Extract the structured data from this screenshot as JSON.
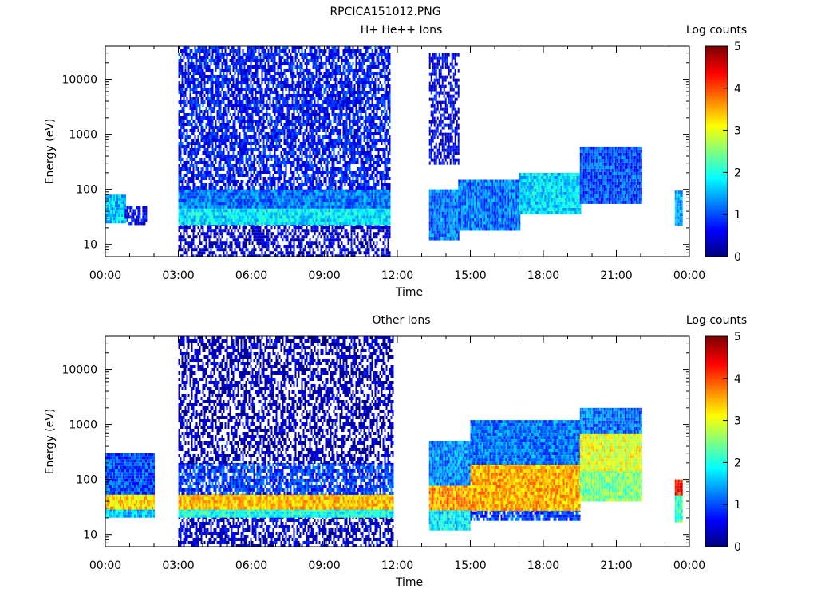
{
  "figure": {
    "title": "RPCICA151012.PNG"
  },
  "chart_data": [
    {
      "type": "heatmap",
      "title": "H+ He++ Ions",
      "xlabel": "Time",
      "ylabel": "Energy (eV)",
      "x_ticks": [
        "00:00",
        "03:00",
        "06:00",
        "09:00",
        "12:00",
        "15:00",
        "18:00",
        "21:00",
        "00:00"
      ],
      "x_range_hours": [
        0,
        24
      ],
      "y_scale": "log",
      "y_range": [
        6,
        40000
      ],
      "y_ticks": [
        "10",
        "100",
        "1000",
        "10000"
      ],
      "colorbar": {
        "label": "Log counts",
        "range": [
          0,
          5
        ],
        "ticks": [
          "0",
          "1",
          "2",
          "3",
          "4",
          "5"
        ]
      },
      "regions": [
        {
          "t_start_h": 0.0,
          "t_end_h": 0.8,
          "e_low": 25,
          "e_high": 80,
          "log_counts": 1.6
        },
        {
          "t_start_h": 0.8,
          "t_end_h": 1.7,
          "e_low": 25,
          "e_high": 50,
          "log_counts": 0.6
        },
        {
          "t_start_h": 3.0,
          "t_end_h": 11.7,
          "e_low": 6,
          "e_high": 25,
          "log_counts": 0.4
        },
        {
          "t_start_h": 3.0,
          "t_end_h": 11.7,
          "e_low": 25,
          "e_high": 50,
          "log_counts": 1.8
        },
        {
          "t_start_h": 3.0,
          "t_end_h": 11.7,
          "e_low": 50,
          "e_high": 100,
          "log_counts": 1.2
        },
        {
          "t_start_h": 3.0,
          "t_end_h": 11.7,
          "e_low": 100,
          "e_high": 40000,
          "log_counts": 0.7
        },
        {
          "t_start_h": 13.3,
          "t_end_h": 14.5,
          "e_low": 12,
          "e_high": 100,
          "log_counts": 1.2
        },
        {
          "t_start_h": 13.3,
          "t_end_h": 14.5,
          "e_low": 300,
          "e_high": 30000,
          "log_counts": 0.5
        },
        {
          "t_start_h": 14.5,
          "t_end_h": 17.0,
          "e_low": 20,
          "e_high": 150,
          "log_counts": 1.2
        },
        {
          "t_start_h": 17.0,
          "t_end_h": 19.5,
          "e_low": 40,
          "e_high": 200,
          "log_counts": 1.7
        },
        {
          "t_start_h": 19.5,
          "t_end_h": 22.0,
          "e_low": 60,
          "e_high": 600,
          "log_counts": 1.0
        },
        {
          "t_start_h": 23.4,
          "t_end_h": 23.7,
          "e_low": 25,
          "e_high": 95,
          "log_counts": 1.5
        }
      ]
    },
    {
      "type": "heatmap",
      "title": "Other Ions",
      "xlabel": "Time",
      "ylabel": "Energy (eV)",
      "x_ticks": [
        "00:00",
        "03:00",
        "06:00",
        "09:00",
        "12:00",
        "15:00",
        "18:00",
        "21:00",
        "00:00"
      ],
      "x_range_hours": [
        0,
        24
      ],
      "y_scale": "log",
      "y_range": [
        6,
        40000
      ],
      "y_ticks": [
        "10",
        "100",
        "1000",
        "10000"
      ],
      "colorbar": {
        "label": "Log counts",
        "range": [
          0,
          5
        ],
        "ticks": [
          "0",
          "1",
          "2",
          "3",
          "4",
          "5"
        ]
      },
      "regions": [
        {
          "t_start_h": 0.0,
          "t_end_h": 2.0,
          "e_low": 22,
          "e_high": 30,
          "log_counts": 1.6
        },
        {
          "t_start_h": 0.0,
          "t_end_h": 2.0,
          "e_low": 30,
          "e_high": 55,
          "log_counts": 3.3
        },
        {
          "t_start_h": 0.0,
          "t_end_h": 2.0,
          "e_low": 55,
          "e_high": 300,
          "log_counts": 1.0
        },
        {
          "t_start_h": 3.0,
          "t_end_h": 11.8,
          "e_low": 6,
          "e_high": 22,
          "log_counts": 0.4
        },
        {
          "t_start_h": 3.0,
          "t_end_h": 11.8,
          "e_low": 22,
          "e_high": 30,
          "log_counts": 2.0
        },
        {
          "t_start_h": 3.0,
          "t_end_h": 11.8,
          "e_low": 30,
          "e_high": 55,
          "log_counts": 3.4
        },
        {
          "t_start_h": 3.0,
          "t_end_h": 11.8,
          "e_low": 55,
          "e_high": 200,
          "log_counts": 0.9
        },
        {
          "t_start_h": 3.0,
          "t_end_h": 11.8,
          "e_low": 200,
          "e_high": 40000,
          "log_counts": 0.3
        },
        {
          "t_start_h": 13.3,
          "t_end_h": 15.0,
          "e_low": 12,
          "e_high": 30,
          "log_counts": 1.8
        },
        {
          "t_start_h": 13.3,
          "t_end_h": 15.0,
          "e_low": 30,
          "e_high": 80,
          "log_counts": 3.6
        },
        {
          "t_start_h": 13.3,
          "t_end_h": 15.0,
          "e_low": 80,
          "e_high": 500,
          "log_counts": 1.3
        },
        {
          "t_start_h": 15.0,
          "t_end_h": 19.5,
          "e_low": 18,
          "e_high": 30,
          "log_counts": 0.9
        },
        {
          "t_start_h": 15.0,
          "t_end_h": 19.5,
          "e_low": 30,
          "e_high": 200,
          "log_counts": 3.5
        },
        {
          "t_start_h": 15.0,
          "t_end_h": 19.5,
          "e_low": 200,
          "e_high": 1200,
          "log_counts": 1.2
        },
        {
          "t_start_h": 19.5,
          "t_end_h": 22.0,
          "e_low": 40,
          "e_high": 150,
          "log_counts": 2.5
        },
        {
          "t_start_h": 19.5,
          "t_end_h": 22.0,
          "e_low": 150,
          "e_high": 700,
          "log_counts": 3.0
        },
        {
          "t_start_h": 19.5,
          "t_end_h": 22.0,
          "e_low": 700,
          "e_high": 2000,
          "log_counts": 1.2
        },
        {
          "t_start_h": 23.4,
          "t_end_h": 23.7,
          "e_low": 18,
          "e_high": 55,
          "log_counts": 2.2
        },
        {
          "t_start_h": 23.4,
          "t_end_h": 23.7,
          "e_low": 55,
          "e_high": 100,
          "log_counts": 4.3
        }
      ]
    }
  ]
}
